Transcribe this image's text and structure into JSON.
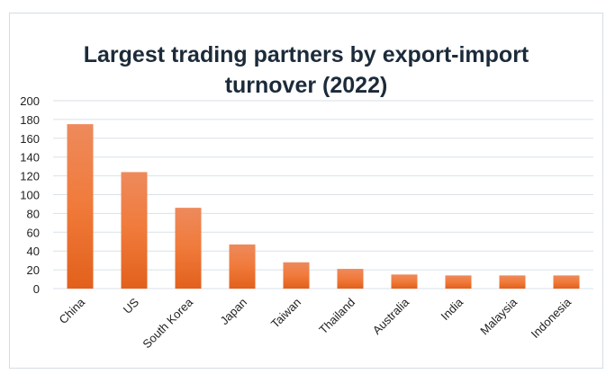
{
  "chart_data": {
    "type": "bar",
    "title": "Largest trading partners by export-import turnover (2022)",
    "categories": [
      "China",
      "US",
      "South Korea",
      "Japan",
      "Taiwan",
      "Thailand",
      "Australia",
      "India",
      "Malaysia",
      "Indonesia"
    ],
    "values": [
      175,
      124,
      86,
      47,
      28,
      21,
      15,
      14,
      14,
      14
    ],
    "xlabel": "",
    "ylabel": "",
    "ylim": [
      0,
      200
    ],
    "yticks": [
      0,
      20,
      40,
      60,
      80,
      100,
      120,
      140,
      160,
      180,
      200
    ],
    "grid": true,
    "legend": "none",
    "colors": {
      "bar_top": "#ee8a5c",
      "bar_bottom": "#e2601c",
      "grid": "#d9e2e8",
      "title": "#1c2b3a"
    }
  }
}
